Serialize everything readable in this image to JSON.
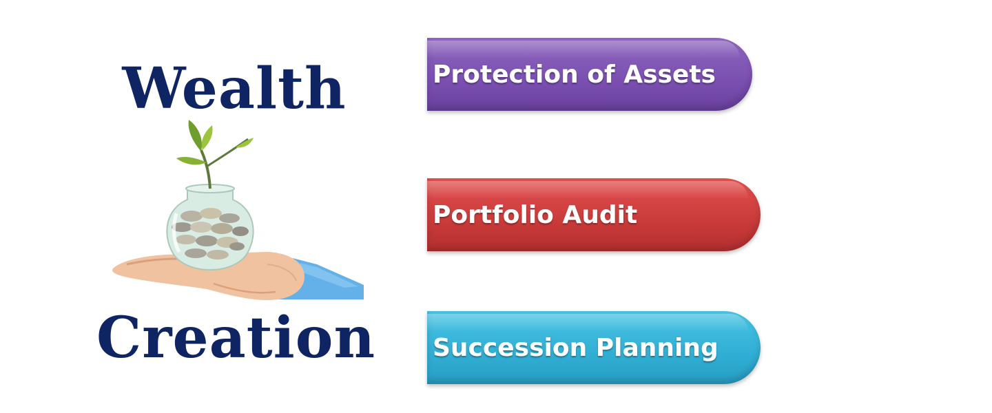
{
  "title": {
    "line1": "Wealth",
    "line2": "Creation",
    "color": "#0f2463"
  },
  "illustration": {
    "icon": "hand-holding-coin-jar-with-plant-icon"
  },
  "items": [
    {
      "label": "Protection of Assets",
      "color": "#7a4fb0"
    },
    {
      "label": "Portfolio Audit",
      "color": "#c93a3a"
    },
    {
      "label": "Succession Planning",
      "color": "#31aed4"
    }
  ]
}
